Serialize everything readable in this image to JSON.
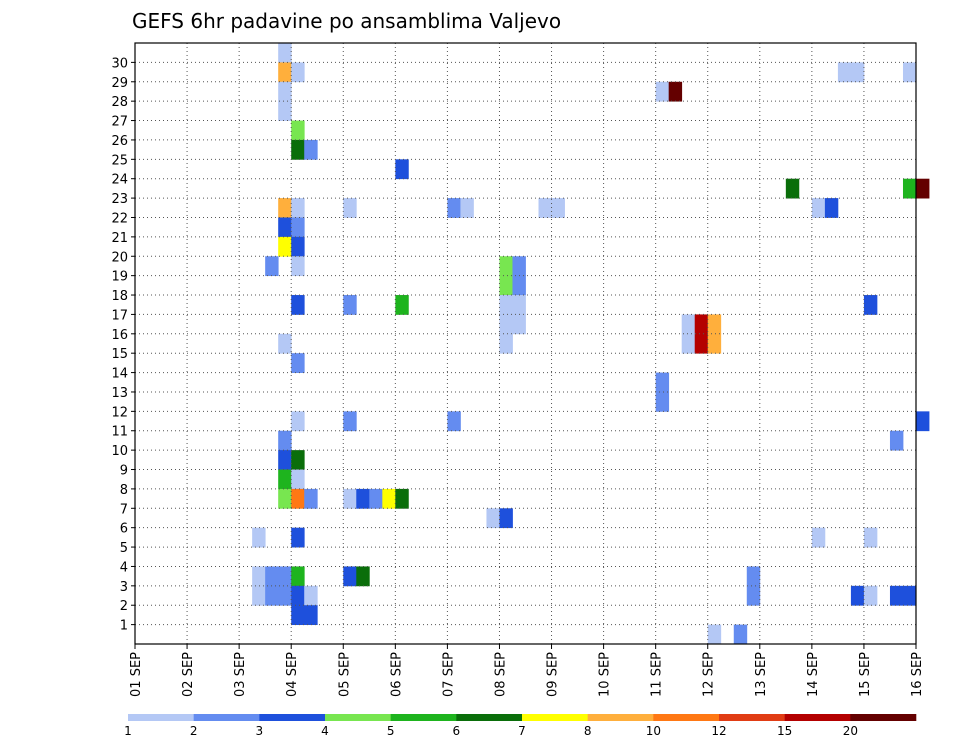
{
  "chart_data": {
    "type": "heatmap",
    "title": "GEFS 6hr padavine po ansamblima Valjevo",
    "y_categories": [
      "1",
      "2",
      "3",
      "4",
      "5",
      "6",
      "7",
      "8",
      "9",
      "10",
      "11",
      "12",
      "13",
      "14",
      "15",
      "16",
      "17",
      "18",
      "19",
      "20",
      "21",
      "22",
      "23",
      "24",
      "25",
      "26",
      "27",
      "28",
      "29",
      "30"
    ],
    "x_tick_labels": [
      "01 SEP",
      "02 SEP",
      "03 SEP",
      "04 SEP",
      "05 SEP",
      "06 SEP",
      "07 SEP",
      "08 SEP",
      "09 SEP",
      "10 SEP",
      "11 SEP",
      "12 SEP",
      "13 SEP",
      "14 SEP",
      "15 SEP",
      "16 SEP"
    ],
    "x_range_days": [
      0,
      15
    ],
    "steps_per_day": 4,
    "grid": "dotted",
    "colorbar": {
      "labels": [
        "1",
        "2",
        "3",
        "4",
        "5",
        "6",
        "7",
        "8",
        "10",
        "12",
        "15",
        "20"
      ],
      "colors": [
        "#b4c8f5",
        "#648cf0",
        "#1e50dc",
        "#78e650",
        "#1eb41e",
        "#0a6e0a",
        "#ffff00",
        "#ffaf3c",
        "#ff7814",
        "#e13c14",
        "#b40000",
        "#640000"
      ]
    },
    "cells_note": "each cell = [member, 6h step index from 01 SEP 00z, color class index 0-11]",
    "cells": [
      [
        30,
        11,
        0
      ],
      [
        29,
        11,
        7
      ],
      [
        29,
        12,
        0
      ],
      [
        29,
        54,
        0
      ],
      [
        29,
        55,
        0
      ],
      [
        29,
        59,
        0
      ],
      [
        28,
        11,
        0
      ],
      [
        28,
        40,
        0
      ],
      [
        28,
        41,
        11
      ],
      [
        27,
        11,
        0
      ],
      [
        26,
        12,
        3
      ],
      [
        25,
        12,
        5
      ],
      [
        25,
        13,
        1
      ],
      [
        24,
        20,
        2
      ],
      [
        23,
        50,
        5
      ],
      [
        23,
        59,
        4
      ],
      [
        23,
        60,
        11
      ],
      [
        22,
        11,
        7
      ],
      [
        22,
        12,
        0
      ],
      [
        22,
        16,
        0
      ],
      [
        22,
        24,
        1
      ],
      [
        22,
        25,
        0
      ],
      [
        22,
        31,
        0
      ],
      [
        22,
        32,
        0
      ],
      [
        22,
        52,
        0
      ],
      [
        22,
        53,
        2
      ],
      [
        21,
        11,
        2
      ],
      [
        21,
        12,
        1
      ],
      [
        20,
        11,
        6
      ],
      [
        20,
        12,
        2
      ],
      [
        19,
        10,
        1
      ],
      [
        19,
        12,
        0
      ],
      [
        19,
        28,
        3
      ],
      [
        19,
        29,
        1
      ],
      [
        18,
        28,
        3
      ],
      [
        18,
        29,
        1
      ],
      [
        17,
        12,
        2
      ],
      [
        17,
        16,
        1
      ],
      [
        17,
        20,
        4
      ],
      [
        17,
        28,
        0
      ],
      [
        17,
        29,
        0
      ],
      [
        17,
        56,
        2
      ],
      [
        16,
        28,
        0
      ],
      [
        16,
        29,
        0
      ],
      [
        16,
        42,
        0
      ],
      [
        16,
        43,
        10
      ],
      [
        16,
        44,
        7
      ],
      [
        15,
        11,
        0
      ],
      [
        15,
        28,
        0
      ],
      [
        15,
        42,
        0
      ],
      [
        15,
        43,
        10
      ],
      [
        15,
        44,
        7
      ],
      [
        14,
        12,
        1
      ],
      [
        13,
        40,
        1
      ],
      [
        12,
        40,
        1
      ],
      [
        11,
        12,
        0
      ],
      [
        11,
        16,
        1
      ],
      [
        11,
        24,
        1
      ],
      [
        11,
        60,
        2
      ],
      [
        10,
        11,
        1
      ],
      [
        10,
        58,
        1
      ],
      [
        9,
        11,
        2
      ],
      [
        9,
        12,
        5
      ],
      [
        8,
        11,
        4
      ],
      [
        8,
        12,
        0
      ],
      [
        7,
        11,
        3
      ],
      [
        7,
        12,
        8
      ],
      [
        7,
        13,
        1
      ],
      [
        7,
        16,
        0
      ],
      [
        7,
        17,
        2
      ],
      [
        7,
        18,
        1
      ],
      [
        7,
        19,
        6
      ],
      [
        7,
        20,
        5
      ],
      [
        6,
        27,
        0
      ],
      [
        6,
        28,
        2
      ],
      [
        5,
        9,
        0
      ],
      [
        5,
        12,
        2
      ],
      [
        5,
        52,
        0
      ],
      [
        5,
        56,
        0
      ],
      [
        3,
        9,
        0
      ],
      [
        3,
        10,
        1
      ],
      [
        3,
        11,
        1
      ],
      [
        3,
        12,
        4
      ],
      [
        3,
        16,
        2
      ],
      [
        3,
        17,
        5
      ],
      [
        3,
        47,
        1
      ],
      [
        2,
        9,
        0
      ],
      [
        2,
        10,
        1
      ],
      [
        2,
        11,
        1
      ],
      [
        2,
        12,
        2
      ],
      [
        2,
        13,
        0
      ],
      [
        2,
        47,
        1
      ],
      [
        2,
        55,
        2
      ],
      [
        2,
        56,
        0
      ],
      [
        2,
        58,
        2
      ],
      [
        2,
        59,
        2
      ],
      [
        1,
        12,
        2
      ],
      [
        1,
        13,
        2
      ],
      [
        0,
        44,
        0
      ],
      [
        0,
        46,
        1
      ]
    ]
  }
}
